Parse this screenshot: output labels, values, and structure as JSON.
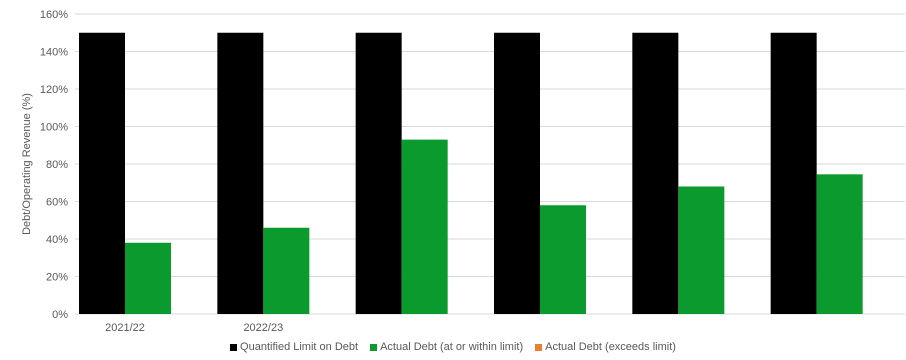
{
  "chart_data": {
    "type": "bar",
    "categories": [
      "2021/22",
      "2022/23",
      "",
      "",
      "",
      ""
    ],
    "ylabel": "Debt/Operating Revenue (%)",
    "ylim": [
      0,
      160
    ],
    "yticks": [
      "0%",
      "20%",
      "40%",
      "60%",
      "80%",
      "100%",
      "120%",
      "140%",
      "160%"
    ],
    "grid": true,
    "legend_position": "bottom",
    "series": [
      {
        "name": "Quantified Limit on Debt",
        "color": "#000000",
        "values": [
          150,
          150,
          150,
          150,
          150,
          150
        ]
      },
      {
        "name": "Actual Debt (at or within limit)",
        "color": "#0a9a2e",
        "values": [
          38,
          46,
          93,
          58,
          68,
          74.5
        ]
      },
      {
        "name": "Actual Debt (exceeds limit)",
        "color": "#ed7d31",
        "values": [
          0,
          0,
          0,
          0,
          0,
          0
        ]
      }
    ]
  }
}
